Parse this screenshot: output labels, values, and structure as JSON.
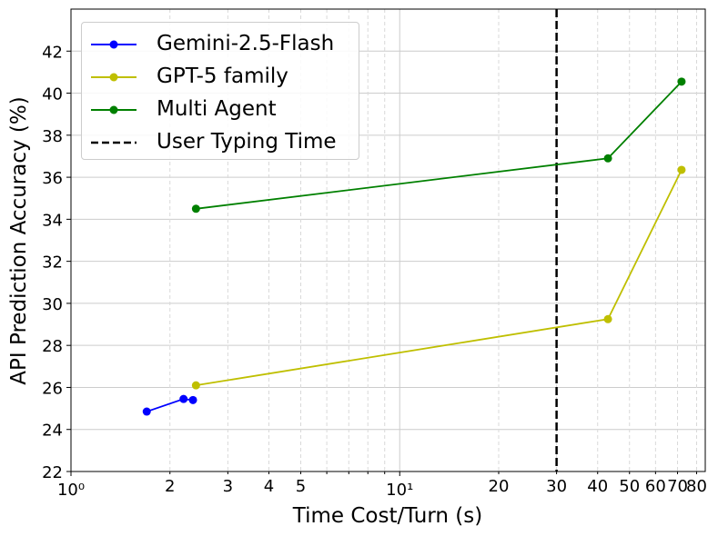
{
  "chart_data": {
    "type": "line",
    "xlabel": "Time Cost/Turn (s)",
    "ylabel": "API Prediction Accuracy (%)",
    "xscale": "log",
    "xlim": [
      1,
      85
    ],
    "ylim": [
      22,
      44
    ],
    "grid": true,
    "legend_position": "top-left",
    "x_major_ticks": [
      {
        "value": 1,
        "label": "10⁰"
      },
      {
        "value": 10,
        "label": "10¹"
      }
    ],
    "x_minor_ticks": [
      {
        "value": 2,
        "label": "2"
      },
      {
        "value": 3,
        "label": "3"
      },
      {
        "value": 4,
        "label": "4"
      },
      {
        "value": 5,
        "label": "5"
      },
      {
        "value": 20,
        "label": "20"
      },
      {
        "value": 30,
        "label": "30"
      },
      {
        "value": 40,
        "label": "40"
      },
      {
        "value": 50,
        "label": "50"
      },
      {
        "value": 60,
        "label": "60"
      },
      {
        "value": 70,
        "label": "70"
      },
      {
        "value": 80,
        "label": "80"
      }
    ],
    "x_unlabeled_minor": [
      6,
      7,
      8,
      9
    ],
    "y_ticks": [
      22,
      24,
      26,
      28,
      30,
      32,
      34,
      36,
      38,
      40,
      42
    ],
    "series": [
      {
        "name": "Gemini-2.5-Flash",
        "color": "#0000ff",
        "marker": "circle",
        "x": [
          1.7,
          2.2,
          2.35
        ],
        "y": [
          24.85,
          25.45,
          25.4
        ]
      },
      {
        "name": "GPT-5 family",
        "color": "#bfbf00",
        "marker": "circle",
        "x": [
          2.4,
          43,
          72
        ],
        "y": [
          26.1,
          29.25,
          36.35
        ]
      },
      {
        "name": "Multi Agent",
        "color": "#008000",
        "marker": "circle",
        "x": [
          2.4,
          43,
          72
        ],
        "y": [
          34.5,
          36.9,
          40.55
        ]
      }
    ],
    "reference_lines": [
      {
        "name": "User Typing Time",
        "orientation": "vertical",
        "x": 30,
        "color": "#000000",
        "style": "dashed"
      }
    ]
  }
}
